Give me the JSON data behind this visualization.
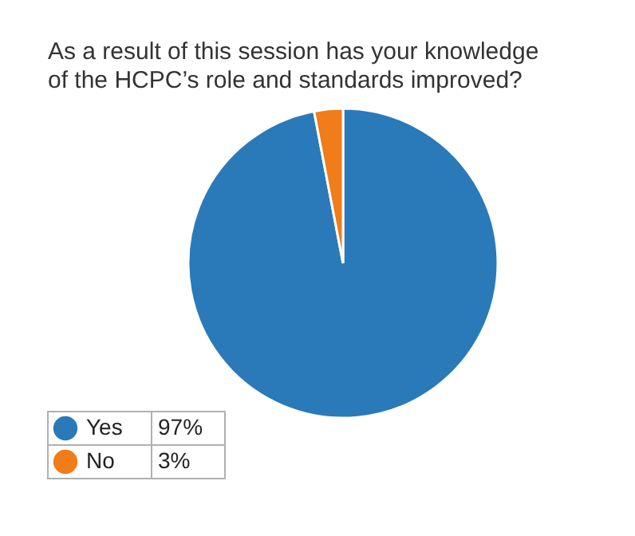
{
  "chart_data": {
    "type": "pie",
    "title": [
      "As a result of this session has your knowledge",
      "of the HCPC’s role and standards improved?"
    ],
    "categories": [
      "Yes",
      "No"
    ],
    "values": [
      97,
      3
    ],
    "colors": [
      "#2a7ab9",
      "#f07c1a"
    ],
    "value_labels": [
      "97%",
      "3%"
    ],
    "legend": "bottom left"
  }
}
